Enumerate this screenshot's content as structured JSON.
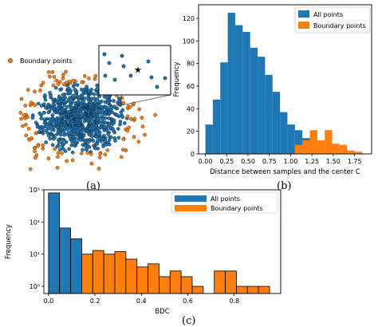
{
  "colors": {
    "all": "#1f77b4",
    "boundary": "#ff7f0e",
    "star": "#2ca02c",
    "edge": "#000000"
  },
  "captions": {
    "a": "(a)",
    "b": "(b)",
    "c": "(c)"
  },
  "chart_data": [
    {
      "type": "scatter",
      "panel": "(a)",
      "legend": {
        "entries": [
          "Boundary points"
        ],
        "position": "upper-left"
      },
      "inset": {
        "marker": "star",
        "note": "zoomed view of the region near the center"
      },
      "series": [
        {
          "name": "Boundary points",
          "color": "#ff7f0e"
        }
      ]
    },
    {
      "type": "bar",
      "panel": "(b)",
      "xlabel": "Distance between samples and the center C",
      "ylabel": "Frequency",
      "xlim": [
        -0.08,
        1.95
      ],
      "ylim": [
        0,
        132
      ],
      "xticks": [
        "0.00",
        "0.25",
        "0.50",
        "0.75",
        "1.00",
        "1.25",
        "1.50",
        "1.75"
      ],
      "yticks": [
        "0",
        "20",
        "40",
        "60",
        "80",
        "100",
        "120"
      ],
      "legend": {
        "position": "top-right",
        "entries": [
          "All points",
          "Boundary points"
        ]
      },
      "bin_edges": [
        0.0,
        0.0875,
        0.175,
        0.2625,
        0.35,
        0.4375,
        0.525,
        0.6125,
        0.7,
        0.7875,
        0.875,
        0.9625,
        1.05,
        1.1375,
        1.225,
        1.3125,
        1.4,
        1.4875,
        1.575,
        1.6625,
        1.75,
        1.8375
      ],
      "series": [
        {
          "name": "All points",
          "color": "#1f77b4",
          "values": [
            26,
            48,
            81,
            125,
            114,
            108,
            94,
            86,
            70,
            55,
            37,
            26,
            21,
            14,
            8,
            3,
            1,
            0,
            0,
            0,
            0
          ]
        },
        {
          "name": "Boundary points",
          "color": "#ff7f0e",
          "values": [
            0,
            0,
            0,
            0,
            0,
            0,
            0,
            0,
            0,
            0,
            0,
            0,
            8,
            12,
            21,
            12,
            21,
            9,
            8,
            3,
            2
          ]
        }
      ]
    },
    {
      "type": "bar",
      "panel": "(c)",
      "xlabel": "BDC",
      "ylabel": "Frequency",
      "yscale": "log",
      "xlim": [
        -0.02,
        1.0
      ],
      "ylim": [
        0.6,
        1000
      ],
      "xticks": [
        "0.0",
        "0.2",
        "0.4",
        "0.6",
        "0.8"
      ],
      "yticks": [
        "10⁰",
        "10¹",
        "10²",
        "10³"
      ],
      "legend": {
        "position": "top-right",
        "entries": [
          "All points",
          "Boundary points"
        ]
      },
      "bin_edges": [
        0.0,
        0.0476,
        0.0952,
        0.1428,
        0.1904,
        0.238,
        0.2856,
        0.3332,
        0.3808,
        0.4284,
        0.476,
        0.5236,
        0.5712,
        0.6188,
        0.6664,
        0.714,
        0.7616,
        0.8092,
        0.8568,
        0.9044,
        0.952
      ],
      "series": [
        {
          "name": "All points",
          "color": "#1f77b4",
          "values": [
            800,
            65,
            30,
            0,
            0,
            0,
            0,
            0,
            0,
            0,
            0,
            0,
            0,
            0,
            0,
            0,
            0,
            0,
            0,
            0
          ]
        },
        {
          "name": "Boundary points",
          "color": "#ff7f0e",
          "values": [
            0,
            0,
            0,
            10,
            13,
            10,
            12,
            7,
            4,
            5,
            2,
            3,
            2,
            1,
            0,
            3,
            3,
            1,
            1,
            1
          ]
        }
      ]
    }
  ]
}
